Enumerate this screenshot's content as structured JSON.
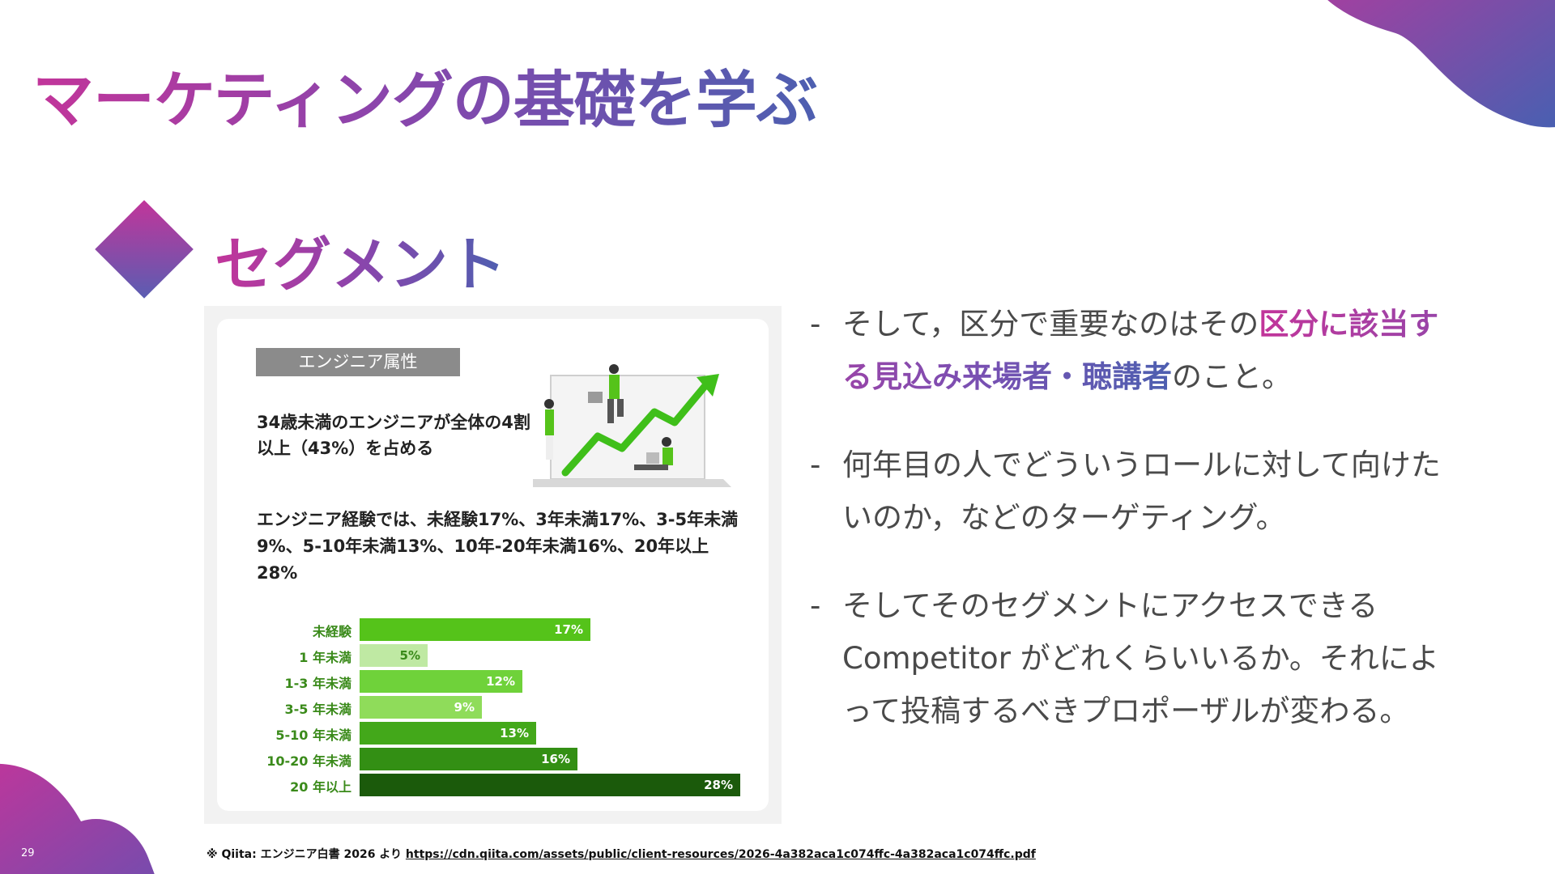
{
  "slide": {
    "title": "マーケティングの基礎を学ぶ",
    "section_title": "セグメント",
    "page_number": "29"
  },
  "figure": {
    "tag": "エンジニア属性",
    "heading1": "34歳未満のエンジニアが全体の4割以上（43%）を占める",
    "heading2": "エンジニア経験では、未経験17%、3年未満17%、3-5年未満9%、5-10年未満13%、10年-20年未満16%、20年以上28%",
    "illustration_icon": "engineers-growth-chart-illustration"
  },
  "chart_data": {
    "type": "bar",
    "orientation": "horizontal",
    "categories": [
      "未経験",
      "1 年未満",
      "1-3 年未満",
      "3-5 年未満",
      "5-10 年未満",
      "10-20 年未満",
      "20 年以上"
    ],
    "values": [
      17,
      5,
      12,
      9,
      13,
      16,
      28
    ],
    "value_labels": [
      "17%",
      "5%",
      "12%",
      "9%",
      "13%",
      "16%",
      "28%"
    ],
    "colors": [
      "#55c31a",
      "#bfe9a3",
      "#6fd23a",
      "#8fdc5a",
      "#43a81a",
      "#338f14",
      "#1b5a0b"
    ],
    "xlim": [
      0,
      28
    ]
  },
  "bullets": [
    {
      "dash": "-",
      "before": "そして，区分で重要なのはその",
      "highlight": "区分に該当する見込み来場者・聴講者",
      "after": "のこと。"
    },
    {
      "dash": "-",
      "before": "何年目の人でどういうロールに対して向けたいのか，などのターゲティング。",
      "highlight": "",
      "after": ""
    },
    {
      "dash": "-",
      "before": "そしてそのセグメントにアクセスできる Competitor がどれくらいいるか。それによって投稿するべきプロポーザルが変わる。",
      "highlight": "",
      "after": ""
    }
  ],
  "footnote": {
    "prefix": "※ Qiita: エンジニア白書 2026 より",
    "link": "https://cdn.qiita.com/assets/public/client-resources/2026-4a382aca1c074ffc-4a382aca1c074ffc.pdf"
  },
  "colors": {
    "gradient_start": "#c2359a",
    "gradient_end": "#4d5fb0",
    "body_text": "#4a4a4a"
  }
}
